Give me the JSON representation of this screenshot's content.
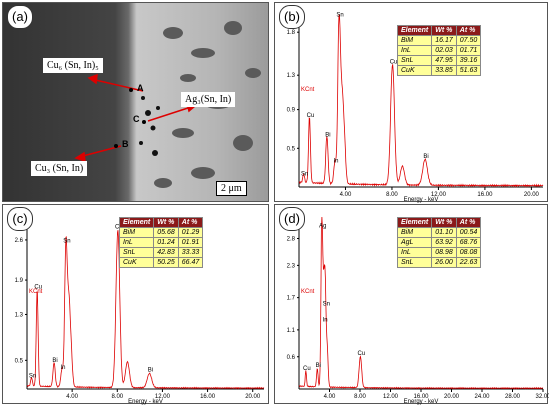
{
  "panels": {
    "a": {
      "label": "(a)",
      "annotations": {
        "cu6": "Cu₆ (Sn, In)₅",
        "ag3": "Ag₃(Sn, In)",
        "cu3": "Cu₃ (Sn, In)"
      },
      "points": [
        "A",
        "B",
        "C"
      ],
      "scale_bar": "2 μm"
    },
    "b": {
      "label": "(b)",
      "table": {
        "headers": [
          "Element",
          "Wt %",
          "At %"
        ],
        "rows": [
          [
            "BiM",
            "16.17",
            "07.50"
          ],
          [
            "InL",
            "02.03",
            "01.71"
          ],
          [
            "SnL",
            "47.95",
            "39.16"
          ],
          [
            "CuK",
            "33.85",
            "51.63"
          ]
        ]
      }
    },
    "c": {
      "label": "(c)",
      "table": {
        "headers": [
          "Element",
          "Wt %",
          "At %"
        ],
        "rows": [
          [
            "BiM",
            "05.68",
            "01.29"
          ],
          [
            "InL",
            "01.24",
            "01.91"
          ],
          [
            "SnL",
            "42.83",
            "33.33"
          ],
          [
            "CuK",
            "50.25",
            "66.47"
          ]
        ]
      }
    },
    "d": {
      "label": "(d)",
      "table": {
        "headers": [
          "Element",
          "Wt %",
          "At %"
        ],
        "rows": [
          [
            "BiM",
            "01.10",
            "00.54"
          ],
          [
            "AgL",
            "63.92",
            "68.76"
          ],
          [
            "InL",
            "08.98",
            "08.08"
          ],
          [
            "SnL",
            "26.00",
            "22.63"
          ]
        ]
      }
    }
  },
  "chart_data": [
    {
      "panel": "b",
      "type": "line",
      "xlabel": "Energy - keV",
      "ylabel": "KCnt",
      "xlim": [
        0,
        21
      ],
      "ylim": [
        0,
        2.0
      ],
      "xticks": [
        "4.00",
        "8.00",
        "12.00",
        "16.00",
        "20.00",
        "24.00",
        "28.00"
      ],
      "xtick_values": [
        4,
        8,
        12,
        16,
        20,
        24,
        28
      ],
      "yticks": [
        "0.5",
        "0.9",
        "1.3",
        "1.8"
      ],
      "ytick_values": [
        0.45,
        0.9,
        1.3,
        1.8
      ],
      "peaks": [
        {
          "x": 0.9,
          "y": 0.78,
          "label": "Cu"
        },
        {
          "x": 2.4,
          "y": 0.55,
          "label": "Bi"
        },
        {
          "x": 3.1,
          "y": 0.25,
          "label": "In"
        },
        {
          "x": 3.45,
          "y": 1.95,
          "label": "Sn"
        },
        {
          "x": 3.7,
          "y": 0.9,
          "label": ""
        },
        {
          "x": 3.9,
          "y": 0.48,
          "label": ""
        },
        {
          "x": 8.05,
          "y": 1.4,
          "label": "Cu"
        },
        {
          "x": 8.9,
          "y": 0.22,
          "label": ""
        },
        {
          "x": 10.85,
          "y": 0.3,
          "label": "Bi"
        },
        {
          "x": 0.4,
          "y": 0.1,
          "label": "Sn"
        }
      ]
    },
    {
      "panel": "c",
      "type": "line",
      "xlabel": "Energy - keV",
      "ylabel": "KCnt",
      "xlim": [
        0,
        21
      ],
      "ylim": [
        0,
        3.0
      ],
      "xticks": [
        "4.00",
        "8.00",
        "12.00",
        "16.00",
        "20.00"
      ],
      "xtick_values": [
        4,
        8,
        12,
        16,
        20
      ],
      "yticks": [
        "0.5",
        "1.3",
        "1.9",
        "2.6"
      ],
      "ytick_values": [
        0.5,
        1.3,
        1.9,
        2.6
      ],
      "peaks": [
        {
          "x": 0.9,
          "y": 1.7,
          "label": "Cu"
        },
        {
          "x": 2.4,
          "y": 0.42,
          "label": "Bi"
        },
        {
          "x": 3.1,
          "y": 0.3,
          "label": "In"
        },
        {
          "x": 3.45,
          "y": 2.5,
          "label": "Sn"
        },
        {
          "x": 3.7,
          "y": 1.35,
          "label": ""
        },
        {
          "x": 3.9,
          "y": 0.6,
          "label": ""
        },
        {
          "x": 8.05,
          "y": 2.75,
          "label": "Cu"
        },
        {
          "x": 8.9,
          "y": 0.45,
          "label": ""
        },
        {
          "x": 10.85,
          "y": 0.25,
          "label": "Bi"
        },
        {
          "x": 0.4,
          "y": 0.15,
          "label": "Sn"
        }
      ]
    },
    {
      "panel": "d",
      "type": "line",
      "xlabel": "Energy - keV",
      "ylabel": "KCnt",
      "xlim": [
        0,
        32
      ],
      "ylim": [
        0,
        3.2
      ],
      "xticks": [
        "4.00",
        "8.00",
        "12.00",
        "16.00",
        "20.00",
        "24.00",
        "28.00",
        "32.00"
      ],
      "xtick_values": [
        4,
        8,
        12,
        16,
        20,
        24,
        28,
        32
      ],
      "yticks": [
        "0.6",
        "1.1",
        "1.7",
        "2.3",
        "2.8"
      ],
      "ytick_values": [
        0.6,
        1.1,
        1.7,
        2.3,
        2.8
      ],
      "peaks": [
        {
          "x": 0.9,
          "y": 0.3,
          "label": "Cu"
        },
        {
          "x": 2.4,
          "y": 0.35,
          "label": "Bi"
        },
        {
          "x": 2.98,
          "y": 2.95,
          "label": "Ag"
        },
        {
          "x": 3.15,
          "y": 1.05,
          "label": ""
        },
        {
          "x": 3.3,
          "y": 1.2,
          "label": "In"
        },
        {
          "x": 3.45,
          "y": 1.5,
          "label": "Sn"
        },
        {
          "x": 3.7,
          "y": 0.7,
          "label": ""
        },
        {
          "x": 8.05,
          "y": 0.58,
          "label": "Cu"
        }
      ]
    }
  ]
}
